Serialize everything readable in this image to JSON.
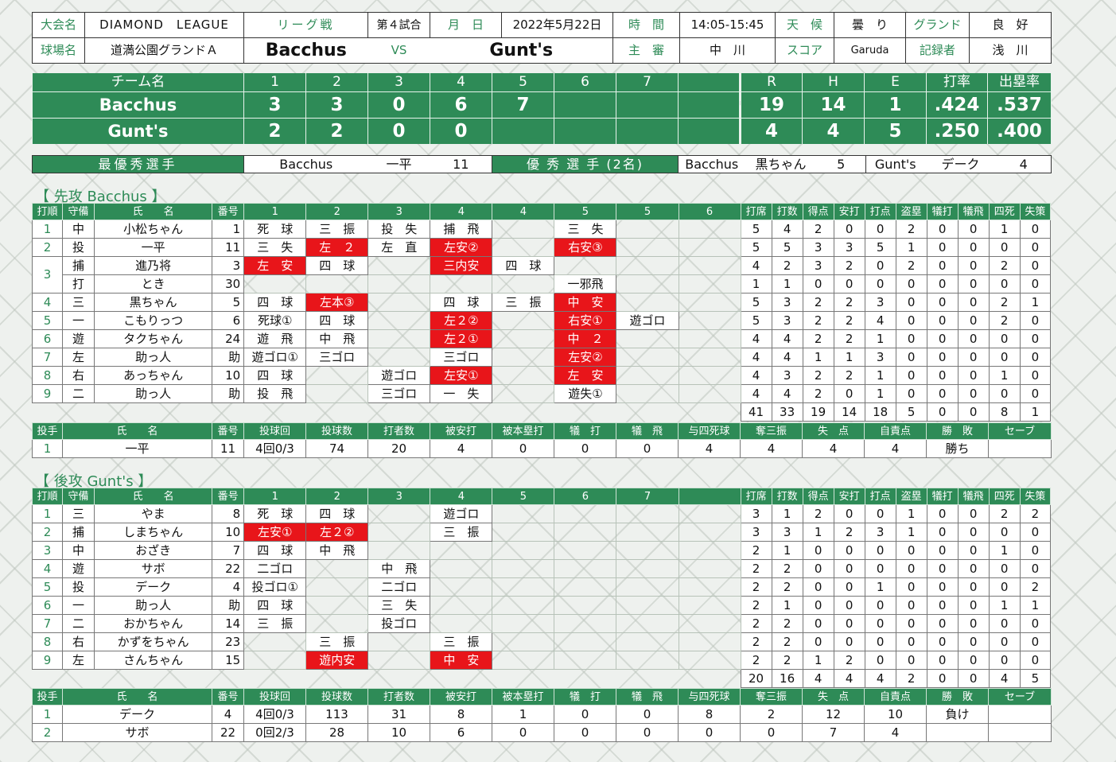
{
  "info": {
    "taikai_label": "大会名",
    "taikai": "DIAMOND　LEAGUE",
    "league_label": "リーグ戦",
    "game_no": "第４試合",
    "date_label": "月　日",
    "date": "2022年5月22日",
    "time_label": "時　間",
    "time": "14:05-15:45",
    "weather_label": "天　候",
    "weather": "曇　り",
    "ground_label": "グランド",
    "ground": "良　好",
    "stadium_label": "球場名",
    "stadium": "道満公園グランドＡ",
    "home_team": "Bacchus",
    "vs": "VS",
    "away_team": "Gunt's",
    "umpire_label": "主　審",
    "umpire": "中　川",
    "score_label": "スコア",
    "score_keeper": "Garuda",
    "recorder_label": "記録者",
    "recorder": "浅　川"
  },
  "scoreboard": {
    "team_header": "チーム名",
    "innings": [
      "1",
      "2",
      "3",
      "4",
      "5",
      "6",
      "7",
      ""
    ],
    "totals_headers": [
      "R",
      "H",
      "E",
      "打率",
      "出塁率"
    ],
    "teams": [
      {
        "name": "Bacchus",
        "innings": [
          "3",
          "3",
          "0",
          "6",
          "7",
          "",
          "",
          ""
        ],
        "totals": [
          "19",
          "14",
          "1",
          ".424",
          ".537"
        ]
      },
      {
        "name": "Gunt's",
        "innings": [
          "2",
          "2",
          "0",
          "0",
          "",
          "",
          "",
          ""
        ],
        "totals": [
          "4",
          "4",
          "5",
          ".250",
          ".400"
        ]
      }
    ]
  },
  "mvp": {
    "best_label": "最優秀選手",
    "best_team": "Bacchus",
    "best_name": "一平",
    "best_no": "11",
    "good_label": "優 秀 選 手 (2名)",
    "good": [
      {
        "team": "Bacchus",
        "name": "黒ちゃん",
        "no": "5"
      },
      {
        "team": "Gunt's",
        "name": "デーク",
        "no": "4"
      }
    ]
  },
  "batting_headers": [
    "打順",
    "守備",
    "氏　　名",
    "番号"
  ],
  "stat_headers": [
    "打席",
    "打数",
    "得点",
    "安打",
    "打点",
    "盗塁",
    "犠打",
    "犠飛",
    "四死",
    "失策"
  ],
  "pitching_headers": [
    "投手",
    "氏　　名",
    "番号",
    "投球回",
    "投球数",
    "打者数",
    "被安打",
    "被本塁打",
    "犠　打",
    "犠　飛",
    "与四死球",
    "奪三振",
    "失　点",
    "自責点",
    "勝　敗",
    "セーブ"
  ],
  "bacchus": {
    "title": "【 先攻 Bacchus 】",
    "innings_header": [
      "1",
      "2",
      "3",
      "4",
      "4",
      "5",
      "5",
      "6"
    ],
    "batters": [
      {
        "order": "1",
        "pos": "中",
        "name": "小松ちゃん",
        "no": "1",
        "ab": [
          "死　球",
          "三　振",
          "投　失",
          "捕　飛",
          "",
          "三　失",
          "",
          ""
        ],
        "stats": [
          "5",
          "4",
          "2",
          "0",
          "0",
          "2",
          "0",
          "0",
          "1",
          "0"
        ]
      },
      {
        "order": "2",
        "pos": "投",
        "name": "一平",
        "no": "11",
        "ab": [
          "三　失",
          "左　２",
          "左　直",
          "左安②",
          "",
          "右安③",
          "",
          ""
        ],
        "stats": [
          "5",
          "5",
          "3",
          "3",
          "5",
          "1",
          "0",
          "0",
          "0",
          "0"
        ]
      },
      {
        "order": "3",
        "pos": "捕",
        "name": "進乃将",
        "no": "3",
        "ab": [
          "左　安",
          "四　球",
          "",
          "三内安",
          "四　球",
          "",
          "",
          ""
        ],
        "stats": [
          "4",
          "2",
          "3",
          "2",
          "0",
          "2",
          "0",
          "0",
          "2",
          "0"
        ]
      },
      {
        "order": "",
        "pos": "打",
        "name": "とき",
        "no": "30",
        "ab": [
          "",
          "",
          "",
          "",
          "",
          "一邪飛",
          "",
          ""
        ],
        "stats": [
          "1",
          "1",
          "0",
          "0",
          "0",
          "0",
          "0",
          "0",
          "0",
          "0"
        ]
      },
      {
        "order": "4",
        "pos": "三",
        "name": "黒ちゃん",
        "no": "5",
        "ab": [
          "四　球",
          "左本③",
          "",
          "四　球",
          "三　振",
          "中　安",
          "",
          ""
        ],
        "stats": [
          "5",
          "3",
          "2",
          "2",
          "3",
          "0",
          "0",
          "0",
          "2",
          "1"
        ]
      },
      {
        "order": "5",
        "pos": "一",
        "name": "こもりっつ",
        "no": "6",
        "ab": [
          "死球①",
          "四　球",
          "",
          "左２②",
          "",
          "右安①",
          "遊ゴロ",
          ""
        ],
        "stats": [
          "5",
          "3",
          "2",
          "2",
          "4",
          "0",
          "0",
          "0",
          "2",
          "0"
        ]
      },
      {
        "order": "6",
        "pos": "遊",
        "name": "タクちゃん",
        "no": "24",
        "ab": [
          "遊　飛",
          "中　飛",
          "",
          "左２①",
          "",
          "中　２",
          "",
          ""
        ],
        "stats": [
          "4",
          "4",
          "2",
          "2",
          "1",
          "0",
          "0",
          "0",
          "0",
          "0"
        ]
      },
      {
        "order": "7",
        "pos": "左",
        "name": "助っ人",
        "no": "助",
        "ab": [
          "遊ゴロ①",
          "三ゴロ",
          "",
          "三ゴロ",
          "",
          "左安②",
          "",
          ""
        ],
        "stats": [
          "4",
          "4",
          "1",
          "1",
          "3",
          "0",
          "0",
          "0",
          "0",
          "0"
        ]
      },
      {
        "order": "8",
        "pos": "右",
        "name": "あっちゃん",
        "no": "10",
        "ab": [
          "四　球",
          "",
          "遊ゴロ",
          "左安①",
          "",
          "左　安",
          "",
          ""
        ],
        "stats": [
          "4",
          "3",
          "2",
          "2",
          "1",
          "0",
          "0",
          "0",
          "1",
          "0"
        ]
      },
      {
        "order": "9",
        "pos": "二",
        "name": "助っ人",
        "no": "助",
        "ab": [
          "投　飛",
          "",
          "三ゴロ",
          "一　失",
          "",
          "遊失①",
          "",
          ""
        ],
        "stats": [
          "4",
          "4",
          "2",
          "0",
          "1",
          "0",
          "0",
          "0",
          "0",
          "0"
        ]
      }
    ],
    "totals": [
      "41",
      "33",
      "19",
      "14",
      "18",
      "5",
      "0",
      "0",
      "8",
      "1"
    ],
    "pitchers": [
      {
        "order": "1",
        "name": "一平",
        "no": "11",
        "cells": [
          "4回0/3",
          "74",
          "20",
          "4",
          "0",
          "0",
          "0",
          "4",
          "4",
          "4",
          "4",
          "勝ち",
          ""
        ]
      }
    ]
  },
  "gunts": {
    "title": "【 後攻 Gunt's 】",
    "innings_header": [
      "1",
      "2",
      "3",
      "4",
      "5",
      "6",
      "7",
      ""
    ],
    "batters": [
      {
        "order": "1",
        "pos": "三",
        "name": "やま",
        "no": "8",
        "ab": [
          "死　球",
          "四　球",
          "",
          "遊ゴロ",
          "",
          "",
          "",
          ""
        ],
        "stats": [
          "3",
          "1",
          "2",
          "0",
          "0",
          "1",
          "0",
          "0",
          "2",
          "2"
        ]
      },
      {
        "order": "2",
        "pos": "捕",
        "name": "しまちゃん",
        "no": "10",
        "ab": [
          "左安①",
          "左２②",
          "",
          "三　振",
          "",
          "",
          "",
          ""
        ],
        "stats": [
          "3",
          "3",
          "1",
          "2",
          "3",
          "1",
          "0",
          "0",
          "0",
          "0"
        ]
      },
      {
        "order": "3",
        "pos": "中",
        "name": "おざき",
        "no": "7",
        "ab": [
          "四　球",
          "中　飛",
          "",
          "",
          "",
          "",
          "",
          ""
        ],
        "stats": [
          "2",
          "1",
          "0",
          "0",
          "0",
          "0",
          "0",
          "0",
          "1",
          "0"
        ]
      },
      {
        "order": "4",
        "pos": "遊",
        "name": "サボ",
        "no": "22",
        "ab": [
          "二ゴロ",
          "",
          "中　飛",
          "",
          "",
          "",
          "",
          ""
        ],
        "stats": [
          "2",
          "2",
          "0",
          "0",
          "0",
          "0",
          "0",
          "0",
          "0",
          "0"
        ]
      },
      {
        "order": "5",
        "pos": "投",
        "name": "デーク",
        "no": "4",
        "ab": [
          "投ゴロ①",
          "",
          "二ゴロ",
          "",
          "",
          "",
          "",
          ""
        ],
        "stats": [
          "2",
          "2",
          "0",
          "0",
          "1",
          "0",
          "0",
          "0",
          "0",
          "2"
        ]
      },
      {
        "order": "6",
        "pos": "一",
        "name": "助っ人",
        "no": "助",
        "ab": [
          "四　球",
          "",
          "三　失",
          "",
          "",
          "",
          "",
          ""
        ],
        "stats": [
          "2",
          "1",
          "0",
          "0",
          "0",
          "0",
          "0",
          "0",
          "1",
          "1"
        ]
      },
      {
        "order": "7",
        "pos": "二",
        "name": "おかちゃん",
        "no": "14",
        "ab": [
          "三　振",
          "",
          "投ゴロ",
          "",
          "",
          "",
          "",
          ""
        ],
        "stats": [
          "2",
          "2",
          "0",
          "0",
          "0",
          "0",
          "0",
          "0",
          "0",
          "0"
        ]
      },
      {
        "order": "8",
        "pos": "右",
        "name": "かずをちゃん",
        "no": "23",
        "ab": [
          "",
          "三　振",
          "",
          "三　振",
          "",
          "",
          "",
          ""
        ],
        "stats": [
          "2",
          "2",
          "0",
          "0",
          "0",
          "0",
          "0",
          "0",
          "0",
          "0"
        ]
      },
      {
        "order": "9",
        "pos": "左",
        "name": "さんちゃん",
        "no": "15",
        "ab": [
          "",
          "遊内安",
          "",
          "中　安",
          "",
          "",
          "",
          ""
        ],
        "stats": [
          "2",
          "2",
          "1",
          "2",
          "0",
          "0",
          "0",
          "0",
          "0",
          "0"
        ]
      }
    ],
    "totals": [
      "20",
      "16",
      "4",
      "4",
      "4",
      "2",
      "0",
      "0",
      "4",
      "5"
    ],
    "pitchers": [
      {
        "order": "1",
        "name": "デーク",
        "no": "4",
        "cells": [
          "4回0/3",
          "113",
          "31",
          "8",
          "1",
          "0",
          "0",
          "8",
          "2",
          "12",
          "10",
          "負け",
          ""
        ]
      },
      {
        "order": "2",
        "name": "サボ",
        "no": "22",
        "cells": [
          "0回2/3",
          "28",
          "10",
          "6",
          "0",
          "0",
          "0",
          "0",
          "0",
          "7",
          "4",
          "",
          ""
        ]
      }
    ]
  },
  "colors": {
    "green": "#2e8b57",
    "hit_red": "#e8151a"
  }
}
